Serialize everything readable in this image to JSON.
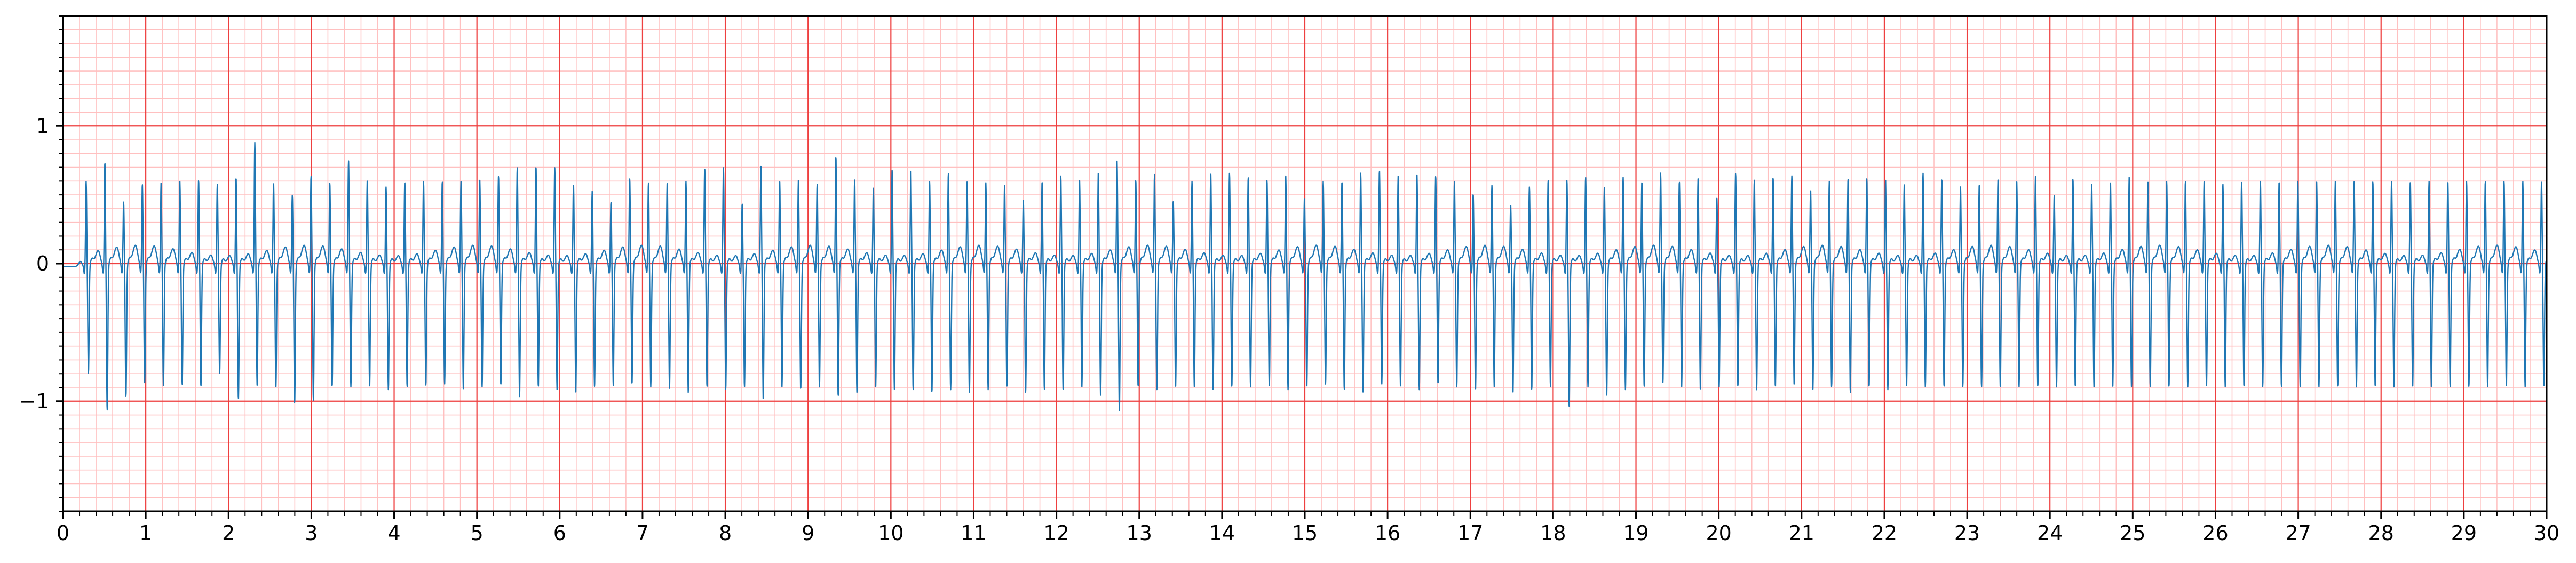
{
  "chart_data": {
    "type": "line",
    "title": "",
    "xlabel": "",
    "ylabel": "",
    "xlim": [
      0,
      30
    ],
    "ylim": [
      -1.8,
      1.8
    ],
    "grid": true,
    "x_major_ticks": [
      "0",
      "1",
      "2",
      "3",
      "4",
      "5",
      "6",
      "7",
      "8",
      "9",
      "10",
      "11",
      "12",
      "13",
      "14",
      "15",
      "16",
      "17",
      "18",
      "19",
      "20",
      "21",
      "22",
      "23",
      "24",
      "25",
      "26",
      "27",
      "28",
      "29",
      "30"
    ],
    "y_major_ticks": [
      "−1",
      "0",
      "1"
    ],
    "y_major_values": [
      -1,
      0,
      1
    ],
    "minor_step_x": 0.2,
    "minor_step_y": 0.1,
    "colors": {
      "major_grid": "#ee4040",
      "minor_grid": "#ffc0c0",
      "trace": "#1f77b4",
      "frame": "#000000"
    },
    "beat_interval_s": 0.2264,
    "first_beat_s": 0.28,
    "beat_r_amplitudes": [
      0.62,
      0.76,
      0.47,
      0.6,
      0.61,
      0.62,
      0.63,
      0.6,
      0.65,
      0.9,
      0.61,
      0.52,
      0.66,
      0.61,
      0.77,
      0.63,
      0.58,
      0.62,
      0.62,
      0.62,
      0.62,
      0.63,
      0.66,
      0.72,
      0.73,
      0.72,
      0.6,
      0.55,
      0.47,
      0.64,
      0.61,
      0.61,
      0.62,
      0.72,
      0.72,
      0.46,
      0.73,
      0.62,
      0.63,
      0.6,
      0.8,
      0.63,
      0.58,
      0.7,
      0.7,
      0.62,
      0.68,
      0.62,
      0.61,
      0.6,
      0.48,
      0.62,
      0.66,
      0.63,
      0.68,
      0.77,
      0.63,
      0.67,
      0.48,
      0.62,
      0.68,
      0.68,
      0.65,
      0.63,
      0.66,
      0.5,
      0.62,
      0.62,
      0.68,
      0.7,
      0.66,
      0.67,
      0.66,
      0.62,
      0.53,
      0.59,
      0.45,
      0.58,
      0.63,
      0.63,
      0.65,
      0.58,
      0.65,
      0.62,
      0.68,
      0.62,
      0.64,
      0.5,
      0.68,
      0.63,
      0.65,
      0.66,
      0.56,
      0.62,
      0.64,
      0.64,
      0.63,
      0.6,
      0.68,
      0.64,
      0.58,
      0.6,
      0.63,
      0.62,
      0.66,
      0.52,
      0.64,
      0.6,
      0.62,
      0.65,
      0.62,
      0.62,
      0.62,
      0.62,
      0.6,
      0.62,
      0.62,
      0.62,
      0.62,
      0.62,
      0.62,
      0.62,
      0.62,
      0.62,
      0.62,
      0.62,
      0.62,
      0.62,
      0.62,
      0.62,
      0.62,
      0.62
    ],
    "beat_s_depths": [
      -0.78,
      -1.05,
      -0.95,
      -0.85,
      -0.88,
      -0.86,
      -0.88,
      -0.78,
      -0.97,
      -0.87,
      -0.88,
      -1.0,
      -0.98,
      -0.88,
      -0.88,
      -0.88,
      -0.9,
      -0.88,
      -0.87,
      -0.86,
      -0.9,
      -0.88,
      -0.87,
      -0.95,
      -0.88,
      -0.9,
      -0.92,
      -0.88,
      -0.87,
      -0.86,
      -0.88,
      -0.9,
      -0.92,
      -0.88,
      -0.9,
      -0.88,
      -0.97,
      -0.88,
      -0.9,
      -0.88,
      -0.95,
      -0.92,
      -0.88,
      -0.9,
      -0.9,
      -0.92,
      -0.9,
      -0.93,
      -0.9,
      -0.88,
      -0.92,
      -0.9,
      -0.9,
      -0.88,
      -0.95,
      -1.05,
      -0.88,
      -0.9,
      -0.88,
      -0.88,
      -0.9,
      -0.88,
      -0.88,
      -0.88,
      -0.9,
      -0.88,
      -0.86,
      -0.9,
      -0.92,
      -0.86,
      -0.88,
      -0.9,
      -0.86,
      -0.88,
      -0.9,
      -0.88,
      -0.92,
      -0.9,
      -0.88,
      -1.03,
      -0.88,
      -0.95,
      -0.9,
      -0.88,
      -0.85,
      -0.88,
      -0.9,
      -0.88,
      -0.88,
      -0.9,
      -0.88,
      -0.86,
      -0.9,
      -0.88,
      -0.92,
      -0.88,
      -0.9,
      -0.88,
      -0.88,
      -0.88,
      -0.88,
      -0.88,
      -0.88,
      -0.88,
      -0.88,
      -0.88,
      -0.88,
      -0.88,
      -0.88,
      -0.88,
      -0.88,
      -0.88,
      -0.88,
      -0.88,
      -0.88,
      -0.88,
      -0.88,
      -0.88,
      -0.88,
      -0.88,
      -0.88,
      -0.88,
      -0.88,
      -0.88,
      -0.88,
      -0.88,
      -0.88,
      -0.88,
      -0.88,
      -0.88,
      -0.88,
      -0.88,
      -0.88,
      -0.88
    ]
  }
}
